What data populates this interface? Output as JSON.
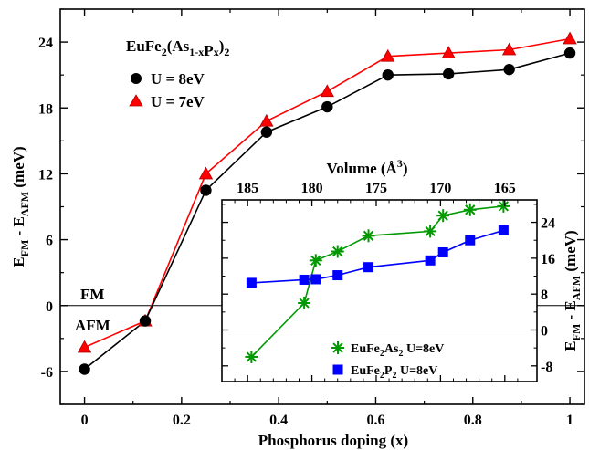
{
  "chart_data": [
    {
      "type": "line",
      "xlabel": "Phosphorus doping (x)",
      "ylabel_main": "E",
      "ylabel_sub1": "FM",
      "ylabel_mid": " - E",
      "ylabel_sub2": "AFM",
      "ylabel_unit": " (meV)",
      "xlim": [
        -0.05,
        1.03
      ],
      "ylim": [
        -9,
        27
      ],
      "xticks": [
        0,
        0.2,
        0.4,
        0.6,
        0.8,
        1
      ],
      "xtick_labels": [
        "0",
        "0.2",
        "0.4",
        "0.6",
        "0.8",
        "1"
      ],
      "yticks": [
        -6,
        0,
        6,
        12,
        18,
        24
      ],
      "ytick_labels": [
        "-6",
        "0",
        "6",
        "12",
        "18",
        "24"
      ],
      "zero_line": true,
      "region_labels": {
        "fm": "FM",
        "afm": "AFM"
      },
      "legend_title": "EuFe2(As1-xPx)2",
      "legend_title_parts": {
        "a": "EuFe",
        "b": "2",
        "c": "(As",
        "d": "1-x",
        "e": "P",
        "f": "x",
        "g": ")",
        "h": "2"
      },
      "legend_placement": "top-left",
      "series": [
        {
          "name": "U = 8eV",
          "color": "#000000",
          "marker": "circle",
          "x": [
            0,
            0.125,
            0.25,
            0.375,
            0.5,
            0.625,
            0.75,
            0.875,
            1.0
          ],
          "y": [
            -5.8,
            -1.4,
            10.5,
            15.8,
            18.1,
            21.0,
            21.1,
            21.5,
            23.0
          ]
        },
        {
          "name": "U = 7eV",
          "color": "#ff0000",
          "marker": "triangle",
          "x": [
            0,
            0.125,
            0.25,
            0.375,
            0.5,
            0.625,
            0.75,
            0.875,
            1.0
          ],
          "y": [
            -3.8,
            -1.4,
            12.0,
            16.8,
            19.5,
            22.7,
            23.0,
            23.3,
            24.3
          ]
        }
      ]
    },
    {
      "type": "line",
      "inset": true,
      "xlabel": "Volume (Å",
      "xlabel_sup": "3",
      "xlabel_end": ")",
      "ylabel_main": "E",
      "ylabel_sub1": "FM",
      "ylabel_mid": " - E",
      "ylabel_sub2": "AFM",
      "ylabel_unit": " (meV)",
      "xlim": [
        187,
        162.5
      ],
      "ylim": [
        -11.5,
        29
      ],
      "xticks": [
        185,
        180,
        175,
        170,
        165
      ],
      "xtick_labels": [
        "185",
        "180",
        "175",
        "170",
        "165"
      ],
      "yticks": [
        -8,
        0,
        8,
        16,
        24
      ],
      "ytick_labels": [
        "-8",
        "0",
        "8",
        "16",
        "24"
      ],
      "zero_line": true,
      "legend_placement": "bottom-right",
      "series": [
        {
          "name": "EuFe2As2 U=8eV",
          "name_parts": {
            "a": "EuFe",
            "b": "2",
            "c": "As",
            "d": "2",
            "e": " U=8eV"
          },
          "color": "#009900",
          "marker": "asterisk",
          "x": [
            184.7,
            180.6,
            179.7,
            178.0,
            175.6,
            170.8,
            169.8,
            167.7,
            165.1
          ],
          "y": [
            -6.0,
            6.0,
            15.5,
            17.5,
            21.0,
            22.0,
            25.5,
            26.8,
            27.6
          ]
        },
        {
          "name": "EuFe2P2 U=8eV",
          "name_parts": {
            "a": "EuFe",
            "b": "2",
            "c": "P",
            "d": "2",
            "e": " U=8eV"
          },
          "color": "#0000ff",
          "marker": "square",
          "x": [
            184.7,
            180.6,
            179.7,
            178.0,
            175.6,
            170.8,
            169.8,
            167.7,
            165.1
          ],
          "y": [
            10.5,
            11.2,
            11.3,
            12.2,
            14.0,
            15.5,
            17.3,
            20.0,
            22.2
          ]
        }
      ]
    }
  ]
}
